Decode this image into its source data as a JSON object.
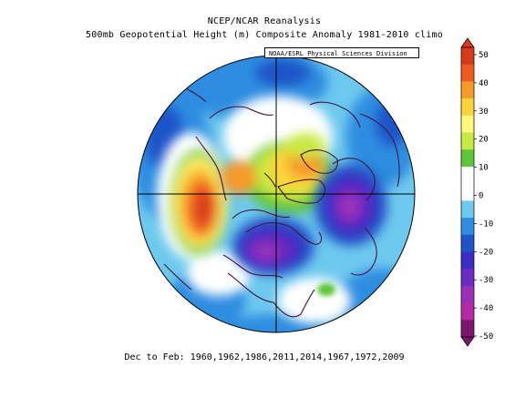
{
  "title": "NCEP/NCAR Reanalysis",
  "subtitle": "500mb Geopotential Height (m) Composite Anomaly 1981-2010 climo",
  "source_label": "NOAA/ESRL Physical Sciences Division",
  "footer": "Dec to Feb: 1960,1962,1986,2011,2014,1967,1972,2009",
  "colorbar": {
    "labels": [
      "50",
      "40",
      "30",
      "20",
      "10",
      "0",
      "-10",
      "-20",
      "-30",
      "-40",
      "-50"
    ],
    "bins": [
      {
        "color": "#d63a1a"
      },
      {
        "color": "#f05a22"
      },
      {
        "color": "#f79a2a"
      },
      {
        "color": "#fcd33a"
      },
      {
        "color": "#fdf77a"
      },
      {
        "color": "#c8e842"
      },
      {
        "color": "#5fc63a"
      },
      {
        "color": "#ffffff"
      },
      {
        "color": "#ffffff"
      },
      {
        "color": "#6ec9ee"
      },
      {
        "color": "#2e8de0"
      },
      {
        "color": "#1f55c8"
      },
      {
        "color": "#3a2cc4"
      },
      {
        "color": "#6a2cc0"
      },
      {
        "color": "#9a30b8"
      },
      {
        "color": "#b42aa6"
      },
      {
        "color": "#7a1870"
      }
    ]
  },
  "colors": {
    "ocean_base": "#2e8de0",
    "coast": "#4a1040",
    "grid": "#000000"
  }
}
